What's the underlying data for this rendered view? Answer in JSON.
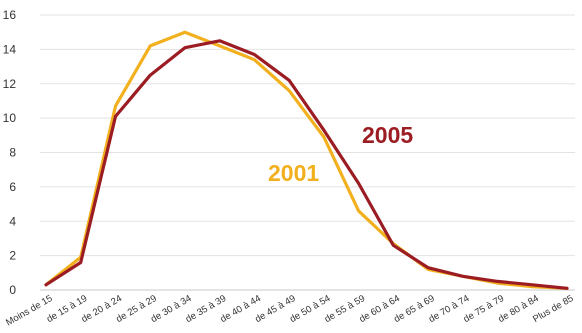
{
  "chart_data": {
    "type": "line",
    "categories": [
      "Moins de 15",
      "de 15 à 19",
      "de 20 à 24",
      "de 25 à 29",
      "de 30 à 34",
      "de 35 à 39",
      "de 40 à 44",
      "de 45 à 49",
      "de 50 à 54",
      "de 55 à 59",
      "de 60 à 64",
      "de 65 à 69",
      "de 70 à 74",
      "de 75 à 79",
      "de 80 à 84",
      "Plus de 85"
    ],
    "series": [
      {
        "name": "2001",
        "color": "#f2b01e",
        "values": [
          0.3,
          1.9,
          10.7,
          14.2,
          15.0,
          14.2,
          13.4,
          11.6,
          8.9,
          4.6,
          2.7,
          1.2,
          0.8,
          0.4,
          0.2,
          0.1
        ]
      },
      {
        "name": "2005",
        "color": "#9b1c22",
        "values": [
          0.3,
          1.6,
          10.1,
          12.5,
          14.1,
          14.5,
          13.7,
          12.2,
          9.3,
          6.2,
          2.6,
          1.3,
          0.8,
          0.5,
          0.3,
          0.1
        ]
      }
    ],
    "yticks": [
      "0",
      "2",
      "4",
      "6",
      "8",
      "10",
      "12",
      "14",
      "16"
    ],
    "ylim": [
      0,
      16
    ],
    "grid": true,
    "title": "",
    "xlabel": "",
    "ylabel": ""
  }
}
